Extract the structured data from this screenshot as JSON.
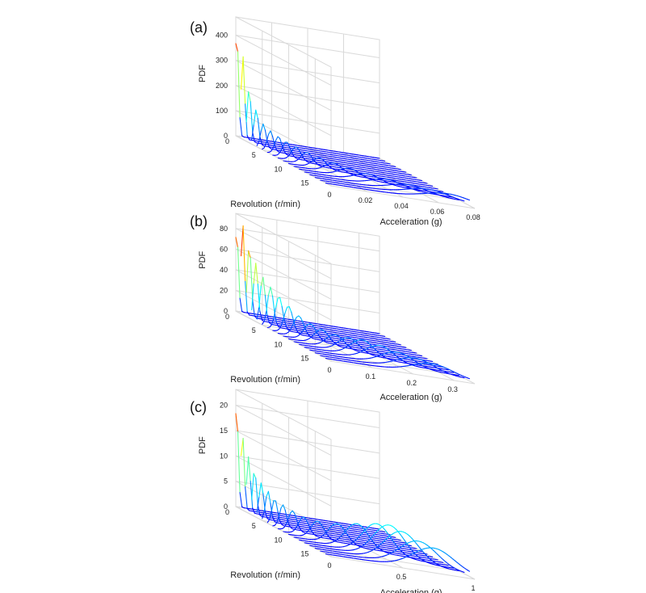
{
  "chart_data": [
    {
      "type": "3d-waterfall",
      "panel_label": "(a)",
      "zlabel": "PDF",
      "ylabel": "Revolution (r/min)",
      "xlabel": "Acceleration (g)",
      "z_ticks": [
        "0",
        "100",
        "200",
        "300",
        "400"
      ],
      "y_ticks": [
        "0",
        "5",
        "10",
        "15"
      ],
      "x_ticks": [
        "0",
        "0.02",
        "0.04",
        "0.06",
        "0.08"
      ],
      "zlim": [
        0,
        450
      ],
      "ylim": [
        0,
        18
      ],
      "xlim": [
        0,
        0.08
      ],
      "colormap": "jet",
      "grid": true,
      "series_peaks": [
        {
          "revolution": 0,
          "mean": 0.0005,
          "peak": 420
        },
        {
          "revolution": 1,
          "mean": 0.001,
          "peak": 330
        },
        {
          "revolution": 2,
          "mean": 0.0015,
          "peak": 210
        },
        {
          "revolution": 3,
          "mean": 0.0025,
          "peak": 140
        },
        {
          "revolution": 4,
          "mean": 0.0035,
          "peak": 95
        },
        {
          "revolution": 5,
          "mean": 0.0045,
          "peak": 80
        },
        {
          "revolution": 6,
          "mean": 0.006,
          "peak": 70
        },
        {
          "revolution": 7,
          "mean": 0.0075,
          "peak": 62
        },
        {
          "revolution": 8,
          "mean": 0.01,
          "peak": 55
        },
        {
          "revolution": 9,
          "mean": 0.013,
          "peak": 48
        },
        {
          "revolution": 10,
          "mean": 0.017,
          "peak": 42
        },
        {
          "revolution": 11,
          "mean": 0.022,
          "peak": 38
        },
        {
          "revolution": 12,
          "mean": 0.028,
          "peak": 34
        },
        {
          "revolution": 13,
          "mean": 0.035,
          "peak": 32
        },
        {
          "revolution": 14,
          "mean": 0.043,
          "peak": 30
        },
        {
          "revolution": 15,
          "mean": 0.052,
          "peak": 30
        },
        {
          "revolution": 16,
          "mean": 0.06,
          "peak": 32
        },
        {
          "revolution": 17,
          "mean": 0.068,
          "peak": 34
        }
      ]
    },
    {
      "type": "3d-waterfall",
      "panel_label": "(b)",
      "zlabel": "PDF",
      "ylabel": "Revolution (r/min)",
      "xlabel": "Acceleration (g)",
      "z_ticks": [
        "0",
        "20",
        "40",
        "60",
        "80"
      ],
      "y_ticks": [
        "0",
        "5",
        "10",
        "15"
      ],
      "x_ticks": [
        "0",
        "0.1",
        "0.2",
        "0.3"
      ],
      "zlim": [
        0,
        90
      ],
      "ylim": [
        0,
        18
      ],
      "xlim": [
        0,
        0.35
      ],
      "colormap": "jet",
      "grid": true,
      "series_peaks": [
        {
          "revolution": 0,
          "mean": 0.002,
          "peak": 80
        },
        {
          "revolution": 1,
          "mean": 0.004,
          "peak": 88
        },
        {
          "revolution": 2,
          "mean": 0.007,
          "peak": 70
        },
        {
          "revolution": 3,
          "mean": 0.01,
          "peak": 55
        },
        {
          "revolution": 4,
          "mean": 0.014,
          "peak": 45
        },
        {
          "revolution": 5,
          "mean": 0.02,
          "peak": 38
        },
        {
          "revolution": 6,
          "mean": 0.028,
          "peak": 32
        },
        {
          "revolution": 7,
          "mean": 0.038,
          "peak": 26
        },
        {
          "revolution": 8,
          "mean": 0.05,
          "peak": 20
        },
        {
          "revolution": 9,
          "mean": 0.065,
          "peak": 16
        },
        {
          "revolution": 10,
          "mean": 0.08,
          "peak": 14
        },
        {
          "revolution": 11,
          "mean": 0.1,
          "peak": 13
        },
        {
          "revolution": 12,
          "mean": 0.12,
          "peak": 14
        },
        {
          "revolution": 13,
          "mean": 0.14,
          "peak": 16
        },
        {
          "revolution": 14,
          "mean": 0.17,
          "peak": 15
        },
        {
          "revolution": 15,
          "mean": 0.2,
          "peak": 13
        },
        {
          "revolution": 16,
          "mean": 0.23,
          "peak": 12
        },
        {
          "revolution": 17,
          "mean": 0.26,
          "peak": 11
        }
      ]
    },
    {
      "type": "3d-waterfall",
      "panel_label": "(c)",
      "zlabel": "PDF",
      "ylabel": "Revolution (r/min)",
      "xlabel": "Acceleration (g)",
      "z_ticks": [
        "0",
        "5",
        "10",
        "15",
        "20"
      ],
      "y_ticks": [
        "0",
        "5",
        "10",
        "15"
      ],
      "x_ticks": [
        "0",
        "0.5",
        "1"
      ],
      "zlim": [
        0,
        22
      ],
      "ylim": [
        0,
        18
      ],
      "xlim": [
        0,
        1
      ],
      "colormap": "jet",
      "grid": true,
      "series_peaks": [
        {
          "revolution": 0,
          "mean": 0.005,
          "peak": 20
        },
        {
          "revolution": 1,
          "mean": 0.01,
          "peak": 15
        },
        {
          "revolution": 2,
          "mean": 0.015,
          "peak": 11
        },
        {
          "revolution": 3,
          "mean": 0.02,
          "peak": 9
        },
        {
          "revolution": 4,
          "mean": 0.03,
          "peak": 7
        },
        {
          "revolution": 5,
          "mean": 0.04,
          "peak": 6
        },
        {
          "revolution": 6,
          "mean": 0.05,
          "peak": 5
        },
        {
          "revolution": 7,
          "mean": 0.07,
          "peak": 4.5
        },
        {
          "revolution": 8,
          "mean": 0.1,
          "peak": 4
        },
        {
          "revolution": 9,
          "mean": 0.14,
          "peak": 3.5
        },
        {
          "revolution": 10,
          "mean": 0.2,
          "peak": 3.5
        },
        {
          "revolution": 11,
          "mean": 0.3,
          "peak": 4
        },
        {
          "revolution": 12,
          "mean": 0.4,
          "peak": 5
        },
        {
          "revolution": 13,
          "mean": 0.5,
          "peak": 6
        },
        {
          "revolution": 14,
          "mean": 0.55,
          "peak": 6.5
        },
        {
          "revolution": 15,
          "mean": 0.6,
          "peak": 6
        },
        {
          "revolution": 16,
          "mean": 0.68,
          "peak": 5
        },
        {
          "revolution": 17,
          "mean": 0.75,
          "peak": 4.5
        }
      ]
    }
  ]
}
